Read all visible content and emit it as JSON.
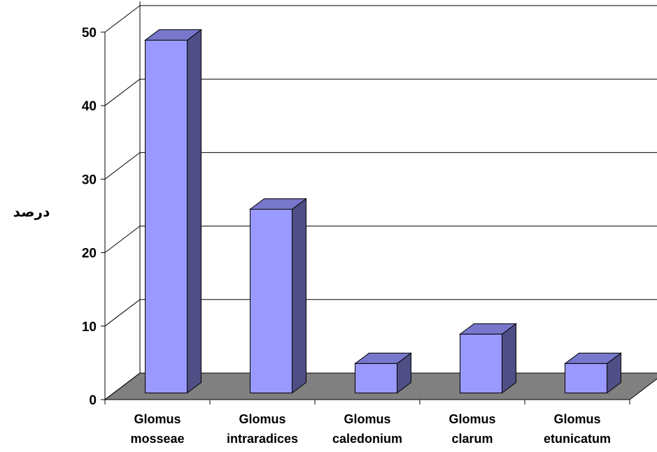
{
  "chart_data": {
    "type": "bar",
    "style": "3d-column",
    "categories": [
      [
        "Glomus",
        "mosseae"
      ],
      [
        "Glomus",
        "intraradices"
      ],
      [
        "Glomus",
        "caledonium"
      ],
      [
        "Glomus",
        "clarum"
      ],
      [
        "Glomus",
        "etunicatum"
      ]
    ],
    "values": [
      48,
      25,
      4,
      8,
      4
    ],
    "ylabel": "درصد",
    "xlabel": "",
    "ylim": [
      0,
      50
    ],
    "yticks": [
      0,
      10,
      20,
      30,
      40,
      50
    ],
    "grid": true,
    "colors": {
      "bar_front": "#9999FF",
      "bar_top": "#7777CC",
      "bar_side": "#4F4F85",
      "floor": "#808080",
      "gridline": "#000000",
      "background": "#FFFFFF"
    }
  }
}
